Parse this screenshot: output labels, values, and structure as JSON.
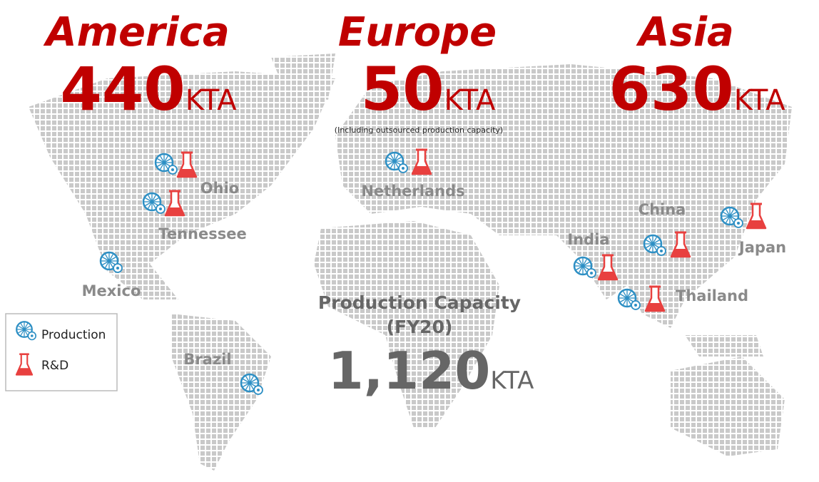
{
  "regions": [
    {
      "name": "America",
      "capacity": "440",
      "unit": "KTA"
    },
    {
      "name": "Europe",
      "capacity": "50",
      "unit": "KTA",
      "note": "(Including outsourced production capacity)"
    },
    {
      "name": "Asia",
      "capacity": "630",
      "unit": "KTA"
    }
  ],
  "sites": [
    "Ohio",
    "Tennessee",
    "Mexico",
    "Netherlands",
    "China",
    "India",
    "Japan",
    "Thailand",
    "Brazil"
  ],
  "legend": {
    "production": "Production",
    "rd": "R&D"
  },
  "total": {
    "title": "Production Capacity",
    "period": "(FY20)",
    "capacity": "1,120",
    "unit": "KTA"
  }
}
